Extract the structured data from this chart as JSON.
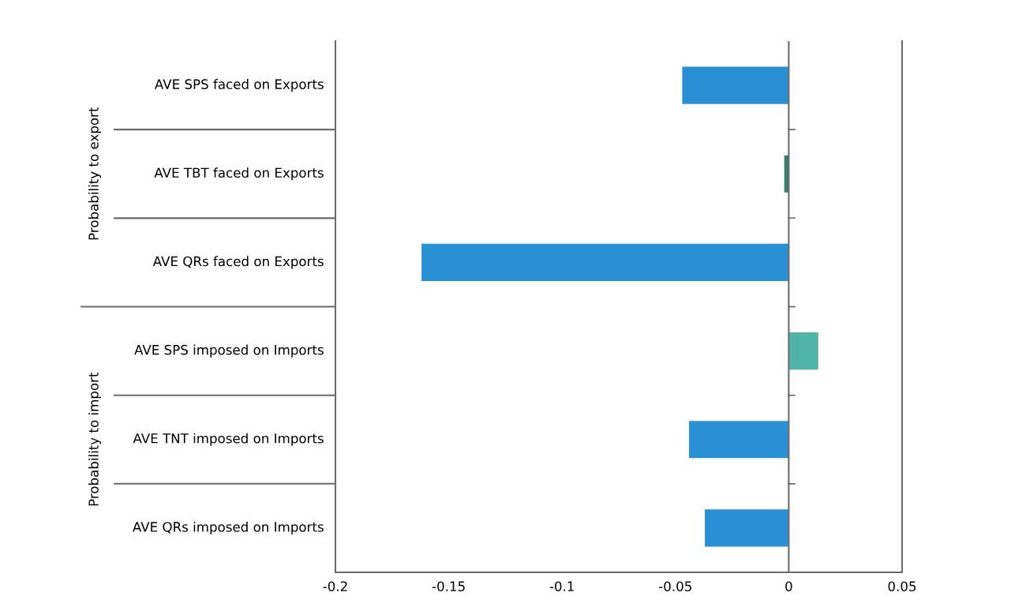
{
  "chart_data": {
    "type": "bar",
    "orientation": "horizontal",
    "categories": [
      "AVE SPS faced on Exports",
      "AVE TBT faced on Exports",
      "AVE QRs faced on Exports",
      "AVE SPS imposed on Imports",
      "AVE TNT imposed on Imports",
      "AVE QRs imposed on Imports"
    ],
    "values": [
      -0.047,
      -0.002,
      -0.162,
      0.013,
      -0.044,
      -0.037
    ],
    "colors": [
      "#2a8fd3",
      "#3b7d70",
      "#2a8fd3",
      "#4fb3a6",
      "#2a8fd3",
      "#2a8fd3"
    ],
    "annotations": [
      "Probability to export",
      "Probability to import"
    ],
    "xlim": [
      -0.2,
      0.05
    ],
    "xticks": [
      -0.2,
      -0.15,
      -0.1,
      -0.05,
      0,
      0.05
    ],
    "ref_lines": [
      {
        "axis": "x",
        "value": 0,
        "color": "#6b6b6b"
      }
    ]
  }
}
